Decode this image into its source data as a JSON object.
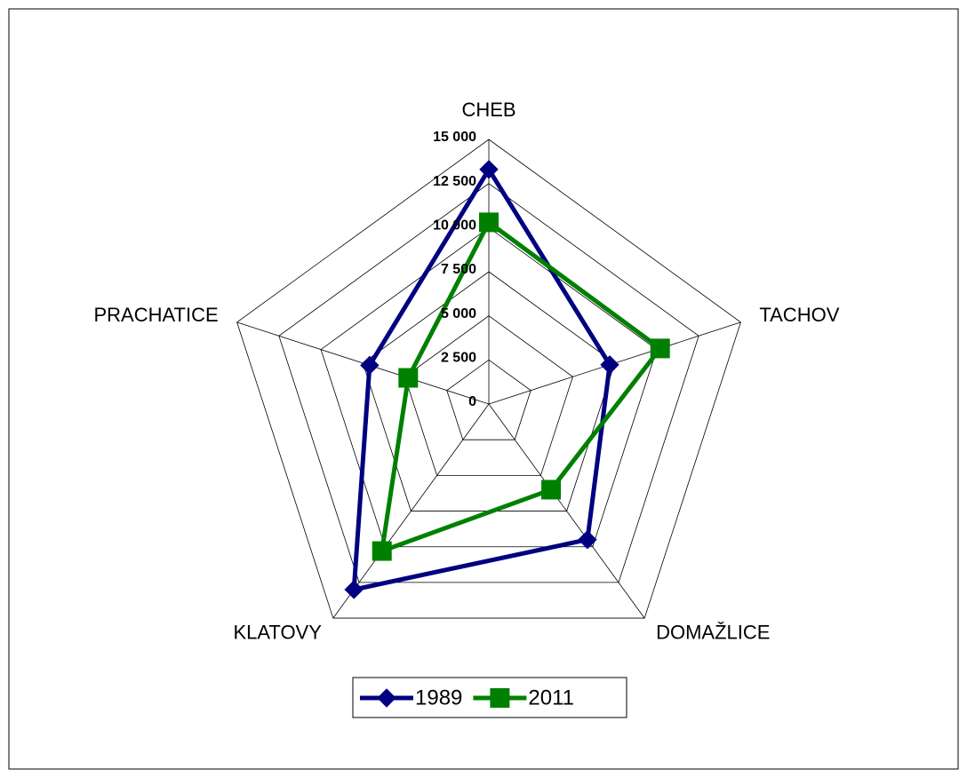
{
  "chart_data": {
    "type": "radar",
    "categories": [
      "CHEB",
      "TACHOV",
      "DOMAŽLICE",
      "KLATOVY",
      "PRACHATICE"
    ],
    "series": [
      {
        "name": "1989",
        "color": "#000080",
        "marker": "diamond",
        "values": [
          13300,
          7200,
          9500,
          13000,
          7100
        ]
      },
      {
        "name": "2011",
        "color": "#008000",
        "marker": "square",
        "values": [
          10300,
          10200,
          6000,
          10300,
          4800
        ]
      }
    ],
    "ylim": [
      0,
      15000
    ],
    "yticks": [
      0,
      {
        "value": 2500,
        "label": "2 500"
      },
      {
        "value": 5000,
        "label": "5 000"
      },
      {
        "value": 7500,
        "label": "7 500"
      },
      {
        "value": 10000,
        "label": "10 000"
      },
      {
        "value": 12500,
        "label": "12 500"
      },
      {
        "value": 15000,
        "label": "15 000"
      }
    ],
    "grid": true,
    "legend": "bottom"
  }
}
